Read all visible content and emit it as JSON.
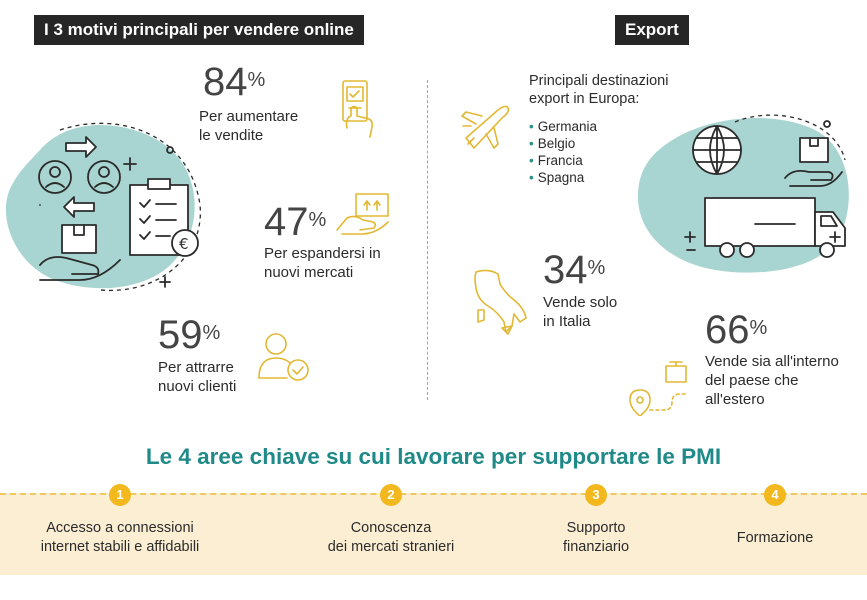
{
  "left_section": {
    "title": "I 3 motivi principali per vendere online",
    "stats": [
      {
        "value": "84",
        "unit": "%",
        "label_line1": "Per aumentare",
        "label_line2": "le vendite",
        "icon": "phone-hand-icon"
      },
      {
        "value": "47",
        "unit": "%",
        "label_line1": "Per espandersi in",
        "label_line2": "nuovi mercati",
        "icon": "box-hand-icon"
      },
      {
        "value": "59",
        "unit": "%",
        "label_line1": "Per attrarre",
        "label_line2": "nuovi clienti",
        "icon": "user-check-icon"
      }
    ]
  },
  "export_section": {
    "title": "Export",
    "destinations_title_line1": "Principali destinazioni",
    "destinations_title_line2": "export in Europa:",
    "destinations": [
      "Germania",
      "Belgio",
      "Francia",
      "Spagna"
    ],
    "stats": [
      {
        "value": "34",
        "unit": "%",
        "label_line1": "Vende solo",
        "label_line2": "in Italia",
        "label_line3": "",
        "icon": "italy-map-icon"
      },
      {
        "value": "66",
        "unit": "%",
        "label_line1": "Vende sia all'interno",
        "label_line2": "del paese che",
        "label_line3": "all'estero",
        "icon": "route-pin-icon"
      }
    ]
  },
  "key_areas": {
    "title": "Le 4 aree chiave su cui lavorare per supportare le PMI",
    "items": [
      {
        "number": "1",
        "line1": "Accesso a connessioni",
        "line2": "internet stabili e affidabili"
      },
      {
        "number": "2",
        "line1": "Conoscenza",
        "line2": "dei mercati stranieri"
      },
      {
        "number": "3",
        "line1": "Supporto",
        "line2": "finanziario"
      },
      {
        "number": "4",
        "line1": "Formazione",
        "line2": ""
      }
    ]
  },
  "colors": {
    "accent_teal": "#1f8a88",
    "blob_teal": "#a8d5d1",
    "icon_yellow": "#e2b832",
    "number_yellow": "#f2b81e",
    "band_bg": "#fbeed3",
    "tag_bg": "#262626"
  }
}
